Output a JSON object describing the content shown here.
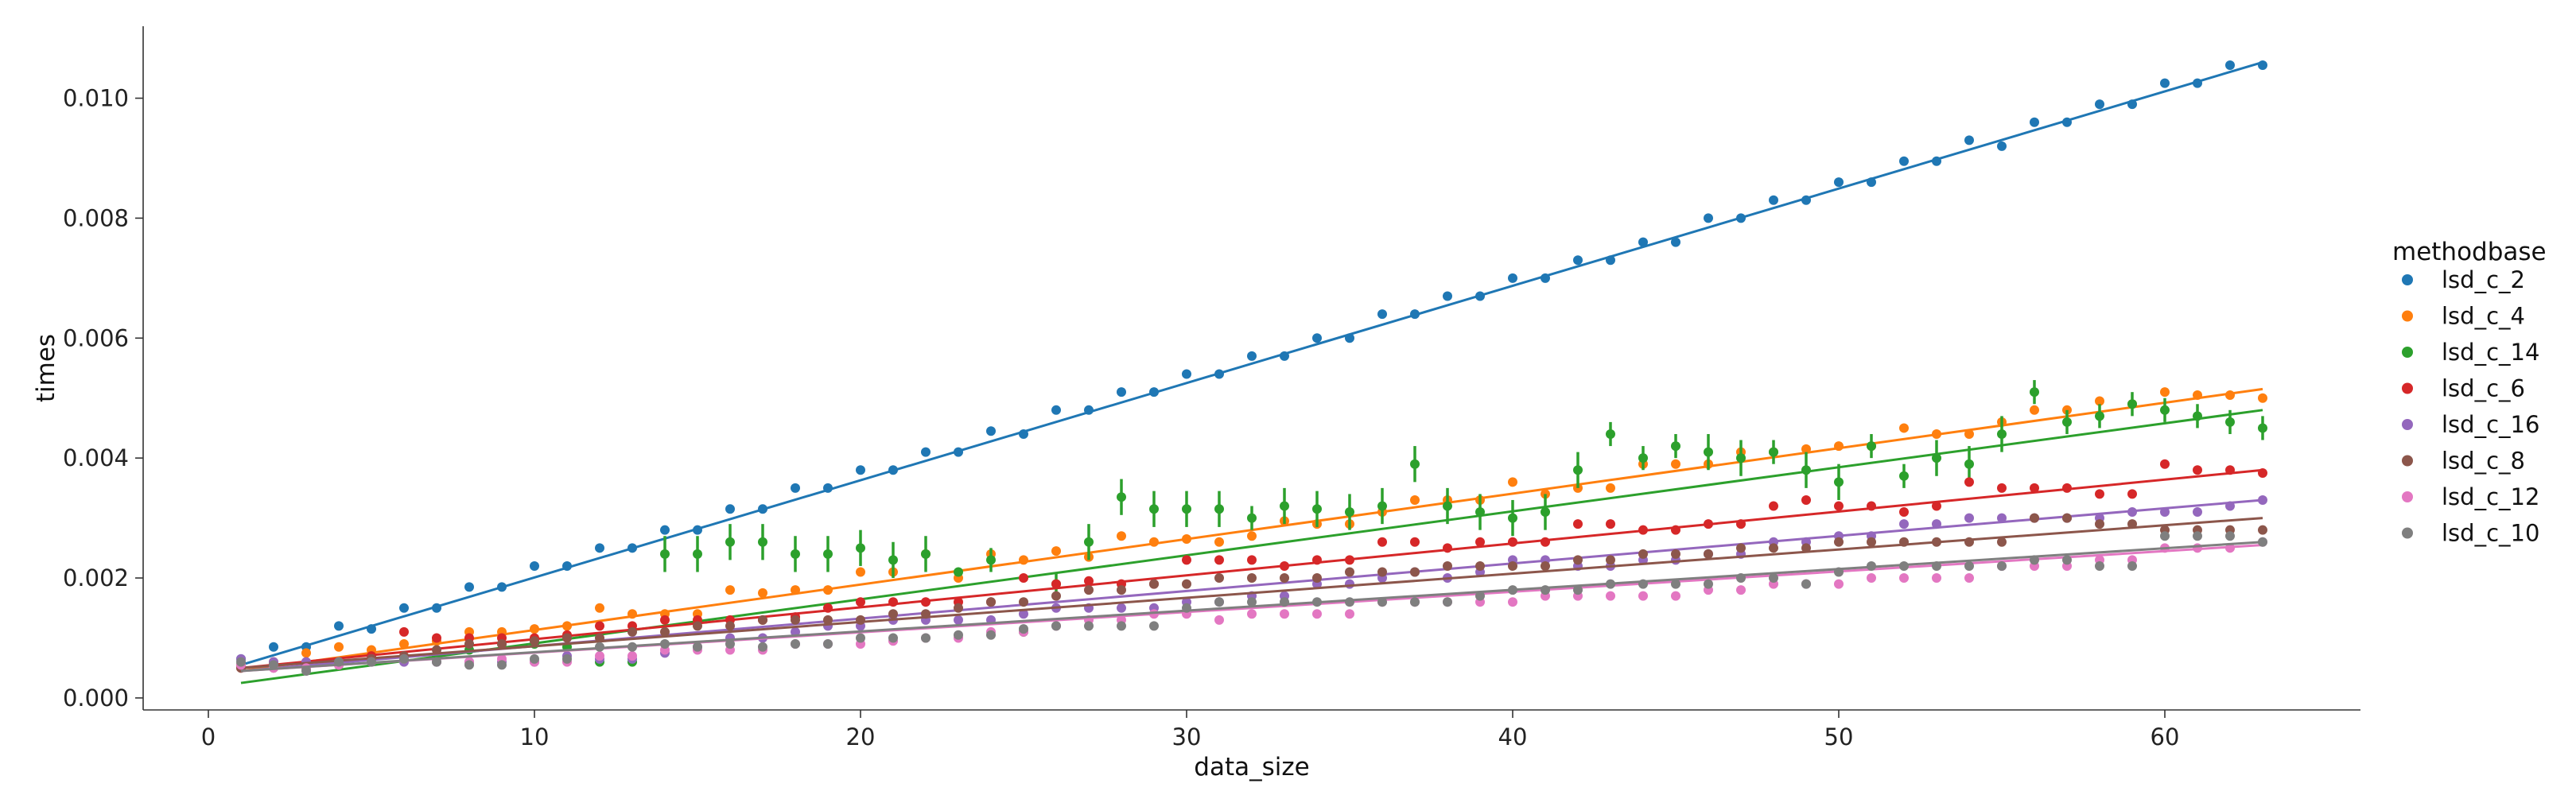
{
  "chart_data": {
    "type": "scatter",
    "title": "",
    "xlabel": "data_size",
    "ylabel": "times",
    "xlim": [
      -2,
      66
    ],
    "ylim": [
      -0.0002,
      0.0112
    ],
    "xticks": [
      "0",
      "10",
      "20",
      "30",
      "40",
      "50",
      "60"
    ],
    "yticks": [
      "0.000",
      "0.002",
      "0.004",
      "0.006",
      "0.008",
      "0.010"
    ],
    "grid": false,
    "legend": {
      "title": "methodbase",
      "placement": "right"
    },
    "x": [
      1,
      2,
      3,
      4,
      5,
      6,
      7,
      8,
      9,
      10,
      11,
      12,
      13,
      14,
      15,
      16,
      17,
      18,
      19,
      20,
      21,
      22,
      23,
      24,
      25,
      26,
      27,
      28,
      29,
      30,
      31,
      32,
      33,
      34,
      35,
      36,
      37,
      38,
      39,
      40,
      41,
      42,
      43,
      44,
      45,
      46,
      47,
      48,
      49,
      50,
      51,
      52,
      53,
      54,
      55,
      56,
      57,
      58,
      59,
      60,
      61,
      62,
      63
    ],
    "series": [
      {
        "name": "lsd_c_2",
        "color": "#1f77b4",
        "values": [
          0.00065,
          0.00085,
          0.00085,
          0.0012,
          0.00115,
          0.0015,
          0.0015,
          0.00185,
          0.00185,
          0.0022,
          0.0022,
          0.0025,
          0.0025,
          0.0028,
          0.0028,
          0.00315,
          0.00315,
          0.0035,
          0.0035,
          0.0038,
          0.0038,
          0.0041,
          0.0041,
          0.00445,
          0.0044,
          0.0048,
          0.0048,
          0.0051,
          0.0051,
          0.0054,
          0.0054,
          0.0057,
          0.0057,
          0.006,
          0.006,
          0.0064,
          0.0064,
          0.0067,
          0.0067,
          0.007,
          0.007,
          0.0073,
          0.0073,
          0.0076,
          0.0076,
          0.008,
          0.008,
          0.0083,
          0.0083,
          0.0086,
          0.0086,
          0.00895,
          0.00895,
          0.0093,
          0.0092,
          0.0096,
          0.0096,
          0.0099,
          0.0099,
          0.01025,
          0.01025,
          0.01055,
          0.01055
        ],
        "fit": [
          0.00055,
          0.0106
        ]
      },
      {
        "name": "lsd_c_4",
        "color": "#ff7f0e",
        "values": [
          0.00055,
          0.0006,
          0.00075,
          0.00085,
          0.0008,
          0.0009,
          0.00095,
          0.0011,
          0.0011,
          0.00115,
          0.0012,
          0.0015,
          0.0014,
          0.0014,
          0.0014,
          0.0018,
          0.00175,
          0.0018,
          0.0018,
          0.0021,
          0.0021,
          0.0024,
          0.002,
          0.0024,
          0.0023,
          0.00245,
          0.00235,
          0.0027,
          0.0026,
          0.00265,
          0.0026,
          0.0027,
          0.00295,
          0.0029,
          0.0029,
          0.0031,
          0.0033,
          0.0033,
          0.0033,
          0.0036,
          0.0034,
          0.0035,
          0.0035,
          0.0039,
          0.0039,
          0.0039,
          0.0041,
          0.0041,
          0.00415,
          0.0042,
          0.0042,
          0.0045,
          0.0044,
          0.0044,
          0.0046,
          0.0048,
          0.0048,
          0.00495,
          0.0049,
          0.0051,
          0.00505,
          0.00505,
          0.005
        ],
        "fit": [
          0.00045,
          0.00515
        ]
      },
      {
        "name": "lsd_c_14",
        "color": "#2ca02c",
        "values": [
          0.00055,
          0.00055,
          0.0005,
          0.00055,
          0.00065,
          0.00065,
          0.0007,
          0.0008,
          0.0009,
          0.0009,
          0.00085,
          0.0006,
          0.0006,
          0.0024,
          0.0024,
          0.0026,
          0.0026,
          0.0024,
          0.0024,
          0.0025,
          0.0023,
          0.0024,
          0.0021,
          0.0023,
          0.0011,
          0.0019,
          0.0026,
          0.00335,
          0.00315,
          0.00315,
          0.00315,
          0.003,
          0.0032,
          0.00315,
          0.0031,
          0.0032,
          0.0039,
          0.0032,
          0.0031,
          0.003,
          0.0031,
          0.0038,
          0.0044,
          0.004,
          0.0042,
          0.0041,
          0.004,
          0.0041,
          0.0038,
          0.0036,
          0.0042,
          0.0037,
          0.004,
          0.0039,
          0.0044,
          0.0051,
          0.0046,
          0.0047,
          0.0049,
          0.0048,
          0.0047,
          0.0046,
          0.0045
        ],
        "errors": [
          0,
          0,
          0,
          0,
          0,
          0,
          0,
          0,
          0,
          0,
          0,
          0,
          0,
          0.0003,
          0.0003,
          0.0003,
          0.0003,
          0.0003,
          0.0003,
          0.0003,
          0.0003,
          0.0003,
          0,
          0.0002,
          0,
          0.0002,
          0.0003,
          0.0003,
          0.0003,
          0.0003,
          0.0003,
          0.0002,
          0.0003,
          0.0003,
          0.0003,
          0.0003,
          0.0003,
          0.0003,
          0.0003,
          0.0003,
          0.0003,
          0.0003,
          0.0002,
          0.0002,
          0.0002,
          0.0003,
          0.0003,
          0.0002,
          0.0003,
          0.0003,
          0.0002,
          0.0002,
          0.0003,
          0.0003,
          0.0003,
          0.0002,
          0.0002,
          0.0002,
          0.0002,
          0.0002,
          0.0002,
          0.0002,
          0.0002
        ],
        "fit": [
          0.00025,
          0.0048
        ]
      },
      {
        "name": "lsd_c_6",
        "color": "#d62728",
        "values": [
          0.0005,
          0.00055,
          0.0006,
          0.0006,
          0.0007,
          0.0011,
          0.001,
          0.001,
          0.001,
          0.001,
          0.00105,
          0.0012,
          0.0012,
          0.0013,
          0.0013,
          0.0013,
          0.0013,
          0.00135,
          0.0015,
          0.0016,
          0.0016,
          0.0016,
          0.0016,
          0.0016,
          0.002,
          0.0019,
          0.00195,
          0.0019,
          0.0019,
          0.0023,
          0.0023,
          0.0023,
          0.0022,
          0.0023,
          0.0023,
          0.0026,
          0.0026,
          0.0025,
          0.0026,
          0.0026,
          0.0026,
          0.0029,
          0.0029,
          0.0028,
          0.0028,
          0.0029,
          0.0029,
          0.0032,
          0.0033,
          0.0032,
          0.0032,
          0.0031,
          0.0032,
          0.0036,
          0.0035,
          0.0035,
          0.0035,
          0.0034,
          0.0034,
          0.0039,
          0.0038,
          0.0038,
          0.00375
        ],
        "fit": [
          0.0005,
          0.0038
        ]
      },
      {
        "name": "lsd_c_16",
        "color": "#9467bd",
        "values": [
          0.00065,
          0.0006,
          0.0006,
          0.0006,
          0.00065,
          0.0006,
          0.0006,
          0.0006,
          0.0006,
          0.0006,
          0.0007,
          0.00065,
          0.00065,
          0.00075,
          0.00085,
          0.001,
          0.001,
          0.0011,
          0.0012,
          0.0012,
          0.0013,
          0.0013,
          0.0013,
          0.0013,
          0.0014,
          0.0015,
          0.0015,
          0.0015,
          0.0015,
          0.0016,
          0.0016,
          0.0017,
          0.0017,
          0.0019,
          0.0019,
          0.002,
          0.0021,
          0.002,
          0.0021,
          0.0023,
          0.0023,
          0.0022,
          0.0022,
          0.0023,
          0.0023,
          0.0024,
          0.0024,
          0.0026,
          0.0026,
          0.0027,
          0.0027,
          0.0029,
          0.0029,
          0.003,
          0.003,
          0.003,
          0.003,
          0.003,
          0.0031,
          0.0031,
          0.0031,
          0.0032,
          0.0033
        ],
        "fit": [
          0.00045,
          0.0033
        ]
      },
      {
        "name": "lsd_c_8",
        "color": "#8c564b",
        "values": [
          0.0005,
          0.0005,
          0.0005,
          0.00055,
          0.00065,
          0.0007,
          0.0008,
          0.0009,
          0.0009,
          0.00095,
          0.001,
          0.001,
          0.0011,
          0.0011,
          0.0012,
          0.0012,
          0.0013,
          0.0013,
          0.0013,
          0.0013,
          0.0014,
          0.0014,
          0.0015,
          0.0016,
          0.0016,
          0.0017,
          0.0018,
          0.0018,
          0.0019,
          0.0019,
          0.002,
          0.002,
          0.002,
          0.002,
          0.0021,
          0.0021,
          0.0021,
          0.0022,
          0.0022,
          0.0022,
          0.0022,
          0.0023,
          0.0023,
          0.0024,
          0.0024,
          0.0024,
          0.0025,
          0.0025,
          0.0025,
          0.0026,
          0.0026,
          0.0026,
          0.0026,
          0.0026,
          0.0026,
          0.003,
          0.003,
          0.0029,
          0.0029,
          0.0028,
          0.0028,
          0.0028,
          0.0028
        ],
        "fit": [
          0.0005,
          0.003
        ]
      },
      {
        "name": "lsd_c_12",
        "color": "#e377c2",
        "values": [
          0.00055,
          0.0005,
          0.0005,
          0.00055,
          0.0006,
          0.00065,
          0.0006,
          0.0006,
          0.00065,
          0.0006,
          0.0006,
          0.0007,
          0.0007,
          0.0008,
          0.0008,
          0.0008,
          0.0008,
          0.0009,
          0.0009,
          0.0009,
          0.00095,
          0.001,
          0.001,
          0.0011,
          0.0011,
          0.0012,
          0.0013,
          0.0013,
          0.0014,
          0.0014,
          0.0013,
          0.0014,
          0.0014,
          0.0014,
          0.0014,
          0.0016,
          0.0016,
          0.0016,
          0.0016,
          0.0016,
          0.0017,
          0.0017,
          0.0017,
          0.0017,
          0.0017,
          0.0018,
          0.0018,
          0.0019,
          0.0019,
          0.0019,
          0.002,
          0.002,
          0.002,
          0.002,
          0.0022,
          0.0022,
          0.0022,
          0.0023,
          0.0023,
          0.0025,
          0.0025,
          0.0025,
          0.0026
        ],
        "fit": [
          0.00045,
          0.00255
        ]
      },
      {
        "name": "lsd_c_10",
        "color": "#7f7f7f",
        "values": [
          0.0006,
          0.00055,
          0.00045,
          0.0006,
          0.0006,
          0.00065,
          0.0006,
          0.00055,
          0.00055,
          0.00065,
          0.00065,
          0.00085,
          0.00085,
          0.0009,
          0.00085,
          0.0009,
          0.00085,
          0.0009,
          0.0009,
          0.001,
          0.001,
          0.001,
          0.00105,
          0.00105,
          0.00115,
          0.0012,
          0.0012,
          0.0012,
          0.0012,
          0.0015,
          0.0016,
          0.0016,
          0.0016,
          0.0016,
          0.0016,
          0.0016,
          0.0016,
          0.0016,
          0.0017,
          0.0018,
          0.0018,
          0.0018,
          0.0019,
          0.0019,
          0.0019,
          0.0019,
          0.002,
          0.002,
          0.0019,
          0.0021,
          0.0022,
          0.0022,
          0.0022,
          0.0022,
          0.0022,
          0.0023,
          0.0023,
          0.0022,
          0.0022,
          0.0027,
          0.0027,
          0.0027,
          0.0026
        ],
        "fit": [
          0.00045,
          0.0026
        ]
      }
    ]
  }
}
